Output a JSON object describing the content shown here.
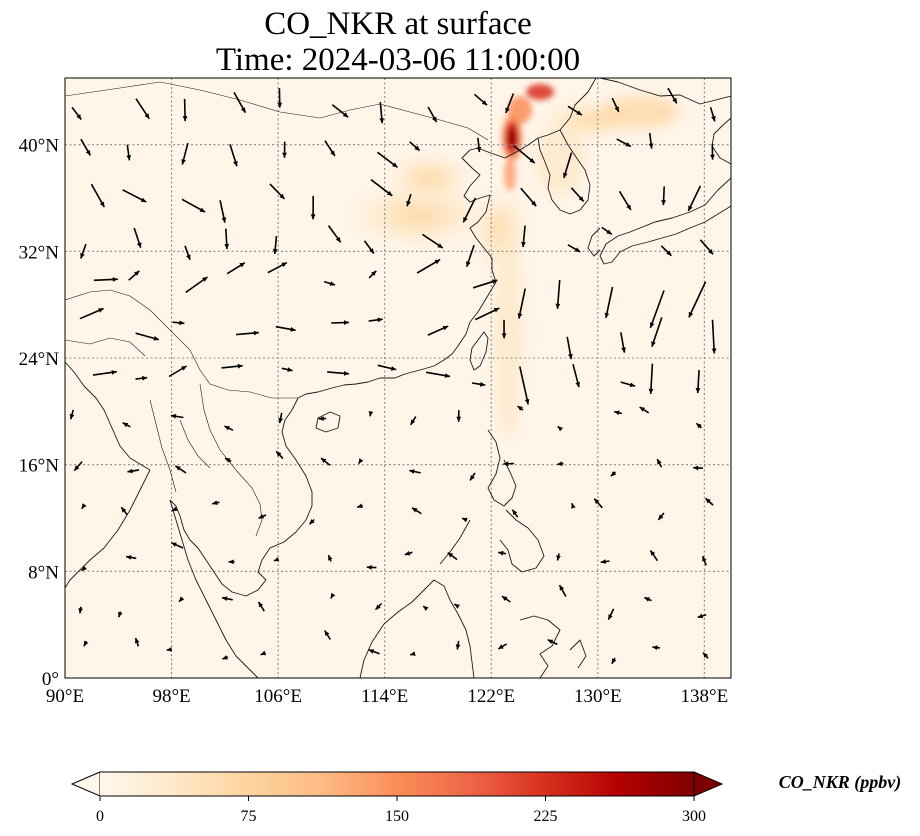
{
  "title_line1": "CO_NKR at surface",
  "title_line2": "Time: 2024-03-06 11:00:00",
  "map": {
    "lon_range": [
      90,
      140
    ],
    "lat_range": [
      0,
      45
    ],
    "lon_ticks": [
      {
        "value": 90,
        "label": "90°E"
      },
      {
        "value": 98,
        "label": "98°E"
      },
      {
        "value": 106,
        "label": "106°E"
      },
      {
        "value": 114,
        "label": "114°E"
      },
      {
        "value": 122,
        "label": "122°E"
      },
      {
        "value": 130,
        "label": "130°E"
      },
      {
        "value": 138,
        "label": "138°E"
      }
    ],
    "lat_ticks": [
      {
        "value": 0,
        "label": "0°"
      },
      {
        "value": 8,
        "label": "8°N"
      },
      {
        "value": 16,
        "label": "16°N"
      },
      {
        "value": 24,
        "label": "24°N"
      },
      {
        "value": 32,
        "label": "32°N"
      },
      {
        "value": 40,
        "label": "40°N"
      }
    ],
    "gridlines": true,
    "background_color": "#fff5e9"
  },
  "colorbar": {
    "label": "CO_NKR (ppbv)",
    "min": 0,
    "max": 300,
    "ticks": [
      {
        "value": 0,
        "label": "0"
      },
      {
        "value": 75,
        "label": "75"
      },
      {
        "value": 150,
        "label": "150"
      },
      {
        "value": 225,
        "label": "225"
      },
      {
        "value": 300,
        "label": "300"
      }
    ],
    "colormap": "OrRd",
    "colors": [
      "#fff7ec",
      "#fee8c8",
      "#fdd49e",
      "#fdbb84",
      "#fc8d59",
      "#ef6548",
      "#d7301f",
      "#b30000",
      "#7f0000"
    ],
    "extend": "both"
  }
}
